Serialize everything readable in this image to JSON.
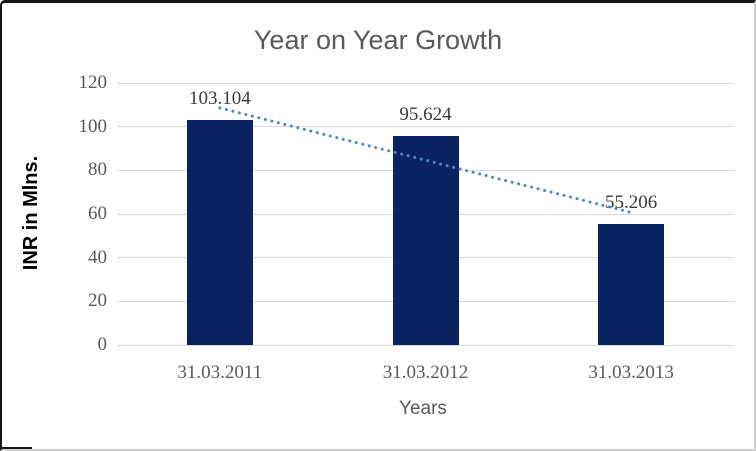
{
  "frame": {
    "background": "#ffffff",
    "border_dark": "#161616",
    "border_light": "#cfcfcf"
  },
  "chart_data": {
    "type": "bar",
    "title": "Year on Year Growth",
    "categories": [
      "31.03.2011",
      "31.03.2012",
      "31.03.2013"
    ],
    "values": [
      103.104,
      95.624,
      55.206
    ],
    "data_labels": [
      "103.104",
      "95.624",
      "55.206"
    ],
    "xlabel": "Years",
    "ylabel": "INR in Mlns.",
    "ylim": [
      0,
      120
    ],
    "yticks": [
      0,
      20,
      40,
      60,
      80,
      100,
      120
    ],
    "grid": true,
    "legend": false,
    "bar_color": "#0a2463",
    "trendline": {
      "type": "linear",
      "style": "dotted",
      "color": "#4f86c6"
    },
    "colors": {
      "title": "#595959",
      "axis_text": "#595959",
      "data_label": "#3a3a3a",
      "gridline": "#d9d9d9"
    }
  }
}
